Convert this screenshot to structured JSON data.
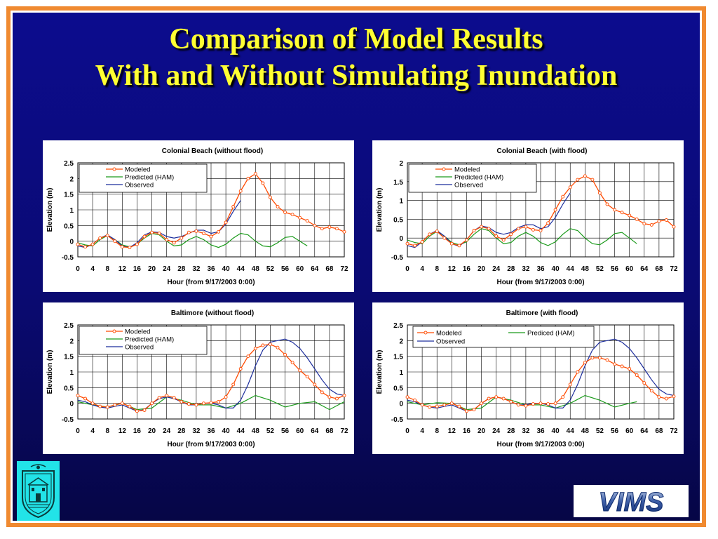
{
  "title": {
    "line1": "Comparison of Model Results",
    "line2": "With and Without Simulating Inundation"
  },
  "colors": {
    "modeled": "#ff4a00",
    "predicted": "#1a9a1a",
    "observed": "#1c2d9c",
    "title": "#ffff33",
    "frame": "#f08a30"
  },
  "logos": {
    "left": "city-seal-logo",
    "right_text": "VIMS"
  },
  "chart_data": [
    {
      "id": "cb-nf",
      "type": "line",
      "title": "Colonial Beach (without flood)",
      "xlabel": "Hour (from 9/17/2003 0:00)",
      "ylabel": "Elevation (m)",
      "xlim": [
        0,
        72
      ],
      "ylim": [
        -0.5,
        2.5
      ],
      "xticks": [
        0,
        4,
        8,
        12,
        16,
        20,
        24,
        28,
        32,
        36,
        40,
        44,
        48,
        52,
        56,
        60,
        64,
        68,
        72
      ],
      "yticks": [
        -0.5,
        0,
        0.5,
        1,
        1.5,
        2,
        2.5
      ],
      "ytick_labels": [
        "-0.5",
        "0",
        "0.5",
        "1",
        "1.5",
        "2",
        "2.5"
      ],
      "grid": true,
      "legend": {
        "placement": "top-left",
        "columns": 1
      },
      "series": [
        {
          "name": "Modeled",
          "key": "modeled",
          "x": [
            0,
            2,
            4,
            6,
            8,
            10,
            12,
            14,
            16,
            18,
            20,
            22,
            24,
            26,
            28,
            30,
            32,
            34,
            36,
            38,
            40,
            42,
            44,
            46,
            48,
            50,
            52,
            54,
            56,
            58,
            60,
            62,
            64,
            66,
            68,
            70,
            72
          ],
          "y": [
            -0.1,
            -0.18,
            -0.1,
            0.1,
            0.18,
            0.0,
            -0.18,
            -0.2,
            -0.1,
            0.15,
            0.28,
            0.25,
            0.05,
            -0.05,
            0.1,
            0.28,
            0.32,
            0.25,
            0.15,
            0.3,
            0.6,
            1.1,
            1.6,
            2.0,
            2.15,
            1.85,
            1.4,
            1.1,
            0.92,
            0.85,
            0.75,
            0.65,
            0.5,
            0.4,
            0.45,
            0.4,
            0.3
          ]
        },
        {
          "name": "Predicted (HAM)",
          "key": "predicted",
          "x": [
            0,
            2,
            4,
            6,
            8,
            10,
            12,
            14,
            16,
            18,
            20,
            22,
            24,
            26,
            28,
            30,
            32,
            34,
            36,
            38,
            40,
            42,
            44,
            46,
            48,
            50,
            52,
            54,
            56,
            58,
            60,
            62
          ],
          "y": [
            -0.05,
            -0.12,
            -0.15,
            0.05,
            0.18,
            0.05,
            -0.12,
            -0.18,
            -0.1,
            0.1,
            0.25,
            0.2,
            0.0,
            -0.15,
            -0.12,
            0.05,
            0.15,
            0.05,
            -0.12,
            -0.2,
            -0.1,
            0.1,
            0.25,
            0.2,
            0.0,
            -0.15,
            -0.18,
            -0.05,
            0.12,
            0.15,
            0.0,
            -0.15
          ]
        },
        {
          "name": "Observed",
          "key": "observed",
          "x": [
            0,
            2,
            4,
            6,
            8,
            10,
            12,
            14,
            16,
            18,
            20,
            22,
            24,
            26,
            28,
            30,
            32,
            34,
            36,
            38,
            40,
            42,
            44
          ],
          "y": [
            -0.15,
            -0.2,
            -0.1,
            0.1,
            0.2,
            0.05,
            -0.15,
            -0.2,
            -0.05,
            0.2,
            0.3,
            0.28,
            0.15,
            0.1,
            0.15,
            0.25,
            0.35,
            0.35,
            0.25,
            0.3,
            0.55,
            0.95,
            1.3
          ]
        }
      ]
    },
    {
      "id": "cb-f",
      "type": "line",
      "title": "Colonial Beach (with flood)",
      "xlabel": "Hour (from 9/17/2003 0:00)",
      "ylabel": "Elevation (m)",
      "xlim": [
        0,
        72
      ],
      "ylim": [
        -0.5,
        2
      ],
      "xticks": [
        0,
        4,
        8,
        12,
        16,
        20,
        24,
        28,
        32,
        36,
        40,
        44,
        48,
        52,
        56,
        60,
        64,
        68,
        72
      ],
      "yticks": [
        -0.5,
        0,
        0.5,
        1,
        1.5,
        2
      ],
      "ytick_labels": [
        "-0.5",
        "0",
        "0.5",
        "1",
        "1.5",
        "2"
      ],
      "grid": true,
      "legend": {
        "placement": "top-left",
        "columns": 1
      },
      "series": [
        {
          "name": "Modeled",
          "key": "modeled",
          "x": [
            0,
            2,
            4,
            6,
            8,
            10,
            12,
            14,
            16,
            18,
            20,
            22,
            24,
            26,
            28,
            30,
            32,
            34,
            36,
            38,
            40,
            42,
            44,
            46,
            48,
            50,
            52,
            54,
            56,
            58,
            60,
            62,
            64,
            66,
            68,
            70,
            72
          ],
          "y": [
            -0.15,
            -0.2,
            -0.1,
            0.1,
            0.18,
            0.0,
            -0.15,
            -0.2,
            -0.05,
            0.2,
            0.3,
            0.25,
            0.05,
            -0.05,
            0.1,
            0.25,
            0.3,
            0.22,
            0.2,
            0.4,
            0.75,
            1.1,
            1.35,
            1.55,
            1.65,
            1.55,
            1.2,
            0.9,
            0.75,
            0.68,
            0.6,
            0.5,
            0.38,
            0.35,
            0.45,
            0.48,
            0.3
          ]
        },
        {
          "name": "Predicted (HAM)",
          "key": "predicted",
          "x": [
            0,
            2,
            4,
            6,
            8,
            10,
            12,
            14,
            16,
            18,
            20,
            22,
            24,
            26,
            28,
            30,
            32,
            34,
            36,
            38,
            40,
            42,
            44,
            46,
            48,
            50,
            52,
            54,
            56,
            58,
            60,
            62
          ],
          "y": [
            -0.05,
            -0.12,
            -0.15,
            0.05,
            0.18,
            0.05,
            -0.12,
            -0.18,
            -0.1,
            0.1,
            0.25,
            0.2,
            0.0,
            -0.15,
            -0.12,
            0.05,
            0.15,
            0.05,
            -0.12,
            -0.2,
            -0.1,
            0.1,
            0.25,
            0.2,
            0.0,
            -0.15,
            -0.18,
            -0.05,
            0.12,
            0.15,
            0.0,
            -0.15
          ]
        },
        {
          "name": "Observed",
          "key": "observed",
          "x": [
            0,
            2,
            4,
            6,
            8,
            10,
            12,
            14,
            16,
            18,
            20,
            22,
            24,
            26,
            28,
            30,
            32,
            34,
            36,
            38,
            40,
            42,
            44
          ],
          "y": [
            -0.2,
            -0.25,
            -0.1,
            0.1,
            0.2,
            0.05,
            -0.15,
            -0.22,
            -0.05,
            0.2,
            0.32,
            0.28,
            0.15,
            0.1,
            0.15,
            0.28,
            0.35,
            0.35,
            0.25,
            0.3,
            0.55,
            0.9,
            1.2
          ]
        }
      ]
    },
    {
      "id": "bm-nf",
      "type": "line",
      "title": "Baltimore (without flood)",
      "xlabel": "Hour (from 9/17/2003 0:00)",
      "ylabel": "Elevation (m)",
      "xlim": [
        0,
        72
      ],
      "ylim": [
        -0.5,
        2.5
      ],
      "xticks": [
        0,
        4,
        8,
        12,
        16,
        20,
        24,
        28,
        32,
        36,
        40,
        44,
        48,
        52,
        56,
        60,
        64,
        68,
        72
      ],
      "yticks": [
        -0.5,
        0,
        0.5,
        1,
        1.5,
        2,
        2.5
      ],
      "ytick_labels": [
        "-0.5",
        "0",
        "0.5",
        "1",
        "1.5",
        "2",
        "2.5"
      ],
      "grid": true,
      "legend": {
        "placement": "top-left",
        "columns": 1
      },
      "series": [
        {
          "name": "Modeled",
          "key": "modeled",
          "x": [
            0,
            2,
            4,
            6,
            8,
            10,
            12,
            14,
            16,
            18,
            20,
            22,
            24,
            26,
            28,
            30,
            32,
            34,
            36,
            38,
            40,
            42,
            44,
            46,
            48,
            50,
            52,
            54,
            56,
            58,
            60,
            62,
            64,
            66,
            68,
            70,
            72
          ],
          "y": [
            0.25,
            0.15,
            0.0,
            -0.1,
            -0.12,
            -0.05,
            0.0,
            -0.1,
            -0.25,
            -0.22,
            0.0,
            0.18,
            0.25,
            0.18,
            0.05,
            -0.02,
            -0.05,
            0.0,
            0.02,
            0.05,
            0.2,
            0.6,
            1.1,
            1.5,
            1.75,
            1.85,
            1.88,
            1.78,
            1.55,
            1.3,
            1.05,
            0.85,
            0.6,
            0.35,
            0.2,
            0.15,
            0.25
          ]
        },
        {
          "name": "Predicted (HAM)",
          "key": "predicted",
          "x": [
            0,
            4,
            8,
            12,
            16,
            20,
            24,
            28,
            32,
            36,
            40,
            44,
            48,
            52,
            56,
            60,
            64,
            68,
            72
          ],
          "y": [
            0.05,
            -0.05,
            -0.12,
            0.0,
            -0.2,
            -0.15,
            0.2,
            0.1,
            -0.05,
            -0.05,
            -0.15,
            0.0,
            0.25,
            0.1,
            -0.12,
            0.0,
            0.05,
            -0.2,
            0.05
          ]
        },
        {
          "name": "Observed",
          "key": "observed",
          "x": [
            0,
            2,
            4,
            6,
            8,
            10,
            12,
            14,
            16,
            18,
            20,
            22,
            24,
            26,
            28,
            30,
            32,
            34,
            36,
            38,
            40,
            42,
            44,
            46,
            48,
            50,
            52,
            54,
            56,
            58,
            60,
            62,
            64,
            66,
            68,
            70,
            72
          ],
          "y": [
            0.1,
            0.05,
            -0.05,
            -0.12,
            -0.15,
            -0.1,
            -0.05,
            -0.15,
            -0.25,
            -0.2,
            0.0,
            0.15,
            0.2,
            0.15,
            0.05,
            -0.05,
            -0.05,
            0.0,
            0.0,
            -0.05,
            -0.15,
            -0.15,
            0.1,
            0.6,
            1.2,
            1.7,
            1.95,
            2.0,
            2.05,
            1.95,
            1.75,
            1.45,
            1.1,
            0.75,
            0.45,
            0.3,
            0.25
          ]
        }
      ]
    },
    {
      "id": "bm-f",
      "type": "line",
      "title": "Baltimore (with flood)",
      "xlabel": "Hour (from 9/17/2003 0:00)",
      "ylabel": "Elevation (m)",
      "xlim": [
        0,
        72
      ],
      "ylim": [
        -0.5,
        2.5
      ],
      "xticks": [
        0,
        4,
        8,
        12,
        16,
        20,
        24,
        28,
        32,
        36,
        40,
        44,
        48,
        52,
        56,
        60,
        64,
        68,
        72
      ],
      "yticks": [
        -0.5,
        0,
        0.5,
        1,
        1.5,
        2,
        2.5
      ],
      "ytick_labels": [
        "-0.5",
        "0",
        "0.5",
        "1",
        "1.5",
        "2",
        "2.5"
      ],
      "grid": true,
      "legend": {
        "placement": "top",
        "columns": 2
      },
      "series": [
        {
          "name": "Modeled",
          "key": "modeled",
          "x": [
            0,
            2,
            4,
            6,
            8,
            10,
            12,
            14,
            16,
            18,
            20,
            22,
            24,
            26,
            28,
            30,
            32,
            34,
            36,
            38,
            40,
            42,
            44,
            46,
            48,
            50,
            52,
            54,
            56,
            58,
            60,
            62,
            64,
            66,
            68,
            70,
            72
          ],
          "y": [
            0.2,
            0.1,
            -0.05,
            -0.12,
            -0.1,
            -0.05,
            0.0,
            -0.1,
            -0.25,
            -0.2,
            0.0,
            0.15,
            0.2,
            0.15,
            0.05,
            -0.05,
            -0.08,
            -0.02,
            0.0,
            -0.02,
            0.0,
            0.2,
            0.6,
            1.0,
            1.3,
            1.45,
            1.45,
            1.38,
            1.25,
            1.18,
            1.1,
            0.9,
            0.65,
            0.4,
            0.2,
            0.15,
            0.22
          ]
        },
        {
          "name": "Prediced (HAM)",
          "key": "predicted",
          "x": [
            0,
            4,
            8,
            12,
            16,
            20,
            24,
            28,
            32,
            36,
            40,
            44,
            48,
            52,
            56,
            60,
            62
          ],
          "y": [
            0.05,
            -0.05,
            0.02,
            0.0,
            -0.2,
            -0.15,
            0.2,
            0.1,
            -0.05,
            -0.05,
            -0.15,
            0.0,
            0.25,
            0.1,
            -0.12,
            0.0,
            0.05
          ]
        },
        {
          "name": "Observed",
          "key": "observed",
          "x": [
            0,
            2,
            4,
            6,
            8,
            10,
            12,
            14,
            16,
            18,
            20,
            22,
            24,
            26,
            28,
            30,
            32,
            34,
            36,
            38,
            40,
            42,
            44,
            46,
            48,
            50,
            52,
            54,
            56,
            58,
            60,
            62,
            64,
            66,
            68,
            70,
            72
          ],
          "y": [
            0.1,
            0.05,
            -0.05,
            -0.12,
            -0.15,
            -0.1,
            -0.05,
            -0.15,
            -0.25,
            -0.2,
            0.0,
            0.15,
            0.2,
            0.15,
            0.05,
            -0.05,
            -0.05,
            0.0,
            0.0,
            -0.05,
            -0.15,
            -0.15,
            0.1,
            0.6,
            1.2,
            1.7,
            1.95,
            2.0,
            2.05,
            1.95,
            1.75,
            1.45,
            1.1,
            0.75,
            0.45,
            0.3,
            0.25
          ]
        }
      ]
    }
  ]
}
